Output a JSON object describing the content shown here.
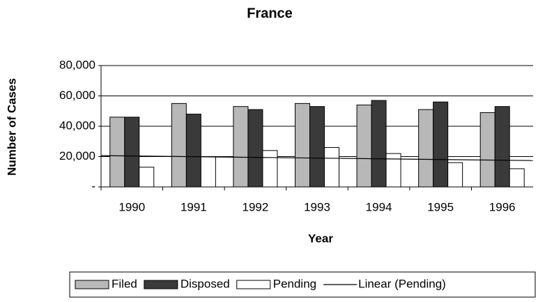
{
  "chart_data": {
    "type": "bar",
    "title": "France",
    "xlabel": "Year",
    "ylabel": "Number of Cases",
    "categories": [
      "1990",
      "1991",
      "1992",
      "1993",
      "1994",
      "1995",
      "1996"
    ],
    "series": [
      {
        "name": "Filed",
        "color": "#b8b8b8",
        "values": [
          46000,
          55000,
          53000,
          55000,
          54000,
          51000,
          49000
        ]
      },
      {
        "name": "Disposed",
        "color": "#3a3a3a",
        "values": [
          46000,
          48000,
          51000,
          53000,
          57000,
          56000,
          53000
        ]
      },
      {
        "name": "Pending",
        "color": "#ffffff",
        "values": [
          13000,
          20000,
          24000,
          26000,
          22000,
          16000,
          12000
        ]
      }
    ],
    "trendline": {
      "name": "Linear (Pending)",
      "color": "#000000"
    },
    "ylim": [
      0,
      80000
    ],
    "yticks": [
      {
        "value": 0,
        "label": "-"
      },
      {
        "value": 20000,
        "label": "20,000"
      },
      {
        "value": 40000,
        "label": "40,000"
      },
      {
        "value": 60000,
        "label": "60,000"
      },
      {
        "value": 80000,
        "label": "80,000"
      }
    ],
    "grid": true
  }
}
